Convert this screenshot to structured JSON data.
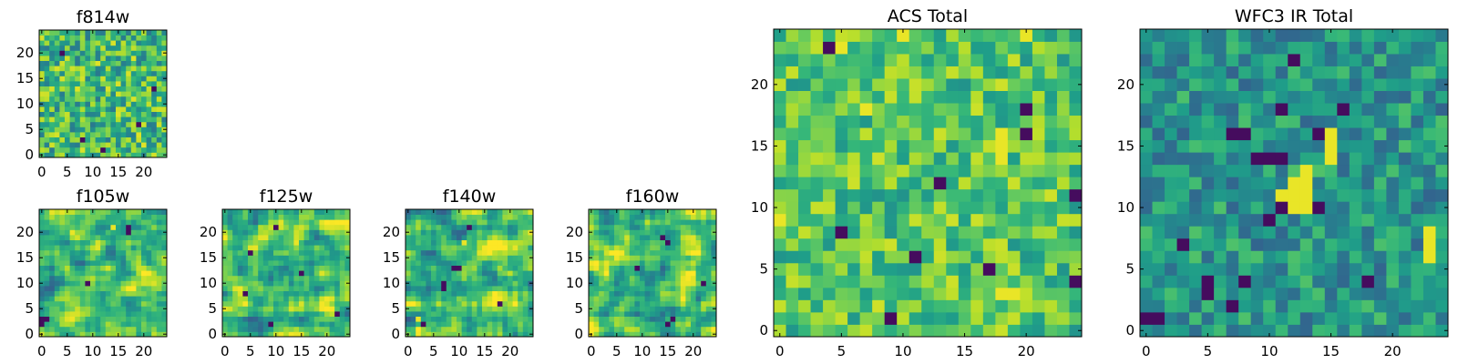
{
  "chart_data": [
    {
      "id": "f814w",
      "type": "heatmap",
      "title": "f814w",
      "grid_size": 25,
      "xlim": [
        -0.5,
        24.5
      ],
      "ylim": [
        -0.5,
        24.5
      ],
      "xticks": [
        0,
        5,
        10,
        15,
        20
      ],
      "yticks": [
        0,
        5,
        10,
        15,
        20
      ],
      "colormap": "viridis",
      "texture": "pixel-noise",
      "seed": 814,
      "hot_cells": [],
      "dark_cells": [
        [
          12,
          1
        ],
        [
          22,
          13
        ],
        [
          4,
          20
        ],
        [
          19,
          6
        ],
        [
          8,
          3
        ]
      ]
    },
    {
      "id": "f105w",
      "type": "heatmap",
      "title": "f105w",
      "grid_size": 25,
      "xlim": [
        -0.5,
        24.5
      ],
      "ylim": [
        -0.5,
        24.5
      ],
      "xticks": [
        0,
        5,
        10,
        15,
        20
      ],
      "yticks": [
        0,
        5,
        10,
        15,
        20
      ],
      "colormap": "viridis",
      "texture": "smooth-noise",
      "seed": 105,
      "hot_cells": [
        [
          6,
          20
        ],
        [
          14,
          21
        ]
      ],
      "dark_cells": [
        [
          0,
          2
        ],
        [
          0,
          3
        ],
        [
          1,
          3
        ],
        [
          17,
          20
        ],
        [
          17,
          21
        ],
        [
          9,
          10
        ]
      ]
    },
    {
      "id": "f125w",
      "type": "heatmap",
      "title": "f125w",
      "grid_size": 25,
      "xlim": [
        -0.5,
        24.5
      ],
      "ylim": [
        -0.5,
        24.5
      ],
      "xticks": [
        0,
        5,
        10,
        15,
        20
      ],
      "yticks": [
        0,
        5,
        10,
        15,
        20
      ],
      "colormap": "viridis",
      "texture": "smooth-noise",
      "seed": 125,
      "hot_cells": [
        [
          14,
          18
        ]
      ],
      "dark_cells": [
        [
          10,
          21
        ],
        [
          5,
          16
        ],
        [
          15,
          12
        ],
        [
          4,
          8
        ],
        [
          22,
          4
        ],
        [
          9,
          2
        ]
      ]
    },
    {
      "id": "f140w",
      "type": "heatmap",
      "title": "f140w",
      "grid_size": 25,
      "xlim": [
        -0.5,
        24.5
      ],
      "ylim": [
        -0.5,
        24.5
      ],
      "xticks": [
        0,
        5,
        10,
        15,
        20
      ],
      "yticks": [
        0,
        5,
        10,
        15,
        20
      ],
      "colormap": "viridis",
      "texture": "smooth-noise",
      "seed": 140,
      "hot_cells": [
        [
          2,
          3
        ],
        [
          11,
          18
        ]
      ],
      "dark_cells": [
        [
          9,
          13
        ],
        [
          10,
          13
        ],
        [
          7,
          9
        ],
        [
          7,
          10
        ],
        [
          12,
          21
        ],
        [
          18,
          6
        ],
        [
          3,
          2
        ]
      ]
    },
    {
      "id": "f160w",
      "type": "heatmap",
      "title": "f160w",
      "grid_size": 25,
      "xlim": [
        -0.5,
        24.5
      ],
      "ylim": [
        -0.5,
        24.5
      ],
      "xticks": [
        0,
        5,
        10,
        15,
        20
      ],
      "yticks": [
        0,
        5,
        10,
        15,
        20
      ],
      "colormap": "viridis",
      "texture": "smooth-noise",
      "seed": 160,
      "hot_cells": [
        [
          19,
          10
        ]
      ],
      "dark_cells": [
        [
          14,
          19
        ],
        [
          15,
          18
        ],
        [
          9,
          13
        ],
        [
          16,
          3
        ],
        [
          15,
          2
        ],
        [
          22,
          10
        ]
      ]
    },
    {
      "id": "acs_total",
      "type": "heatmap",
      "title": "ACS Total",
      "grid_size": 25,
      "xlim": [
        -0.5,
        24.5
      ],
      "ylim": [
        -0.5,
        24.5
      ],
      "xticks": [
        0,
        5,
        10,
        15,
        20
      ],
      "yticks": [
        0,
        5,
        10,
        15,
        20
      ],
      "colormap": "viridis",
      "texture": "pixel-noise-bright",
      "seed": 4242,
      "hot_cells": [
        [
          18,
          15
        ],
        [
          18,
          16
        ],
        [
          18,
          14
        ],
        [
          19,
          3
        ],
        [
          18,
          3
        ],
        [
          0,
          9
        ],
        [
          7,
          18
        ],
        [
          10,
          24
        ],
        [
          5,
          23
        ],
        [
          20,
          24
        ]
      ],
      "dark_cells": [
        [
          4,
          23
        ],
        [
          20,
          18
        ],
        [
          13,
          12
        ],
        [
          24,
          11
        ],
        [
          5,
          8
        ],
        [
          24,
          4
        ],
        [
          9,
          1
        ],
        [
          11,
          6
        ],
        [
          17,
          5
        ],
        [
          20,
          16
        ]
      ]
    },
    {
      "id": "wfc3_ir_total",
      "type": "heatmap",
      "title": "WFC3 IR Total",
      "grid_size": 25,
      "xlim": [
        -0.5,
        24.5
      ],
      "ylim": [
        -0.5,
        24.5
      ],
      "xticks": [
        0,
        5,
        10,
        15,
        20
      ],
      "yticks": [
        0,
        5,
        10,
        15,
        20
      ],
      "colormap": "viridis",
      "texture": "pixel-noise-dim",
      "seed": 3131,
      "hot_cells": [
        [
          12,
          12
        ],
        [
          13,
          12
        ],
        [
          12,
          11
        ],
        [
          13,
          11
        ],
        [
          12,
          10
        ],
        [
          13,
          10
        ],
        [
          11,
          11
        ],
        [
          13,
          13
        ],
        [
          23,
          7
        ],
        [
          23,
          8
        ],
        [
          23,
          6
        ],
        [
          15,
          14
        ],
        [
          15,
          15
        ],
        [
          15,
          16
        ]
      ],
      "dark_cells": [
        [
          0,
          1
        ],
        [
          1,
          1
        ],
        [
          5,
          3
        ],
        [
          5,
          4
        ],
        [
          7,
          2
        ],
        [
          10,
          9
        ],
        [
          11,
          10
        ],
        [
          9,
          14
        ],
        [
          10,
          14
        ],
        [
          11,
          14
        ],
        [
          14,
          16
        ],
        [
          7,
          16
        ],
        [
          8,
          16
        ],
        [
          14,
          10
        ],
        [
          18,
          4
        ],
        [
          3,
          7
        ],
        [
          11,
          18
        ],
        [
          16,
          18
        ],
        [
          12,
          22
        ],
        [
          8,
          4
        ]
      ]
    }
  ]
}
